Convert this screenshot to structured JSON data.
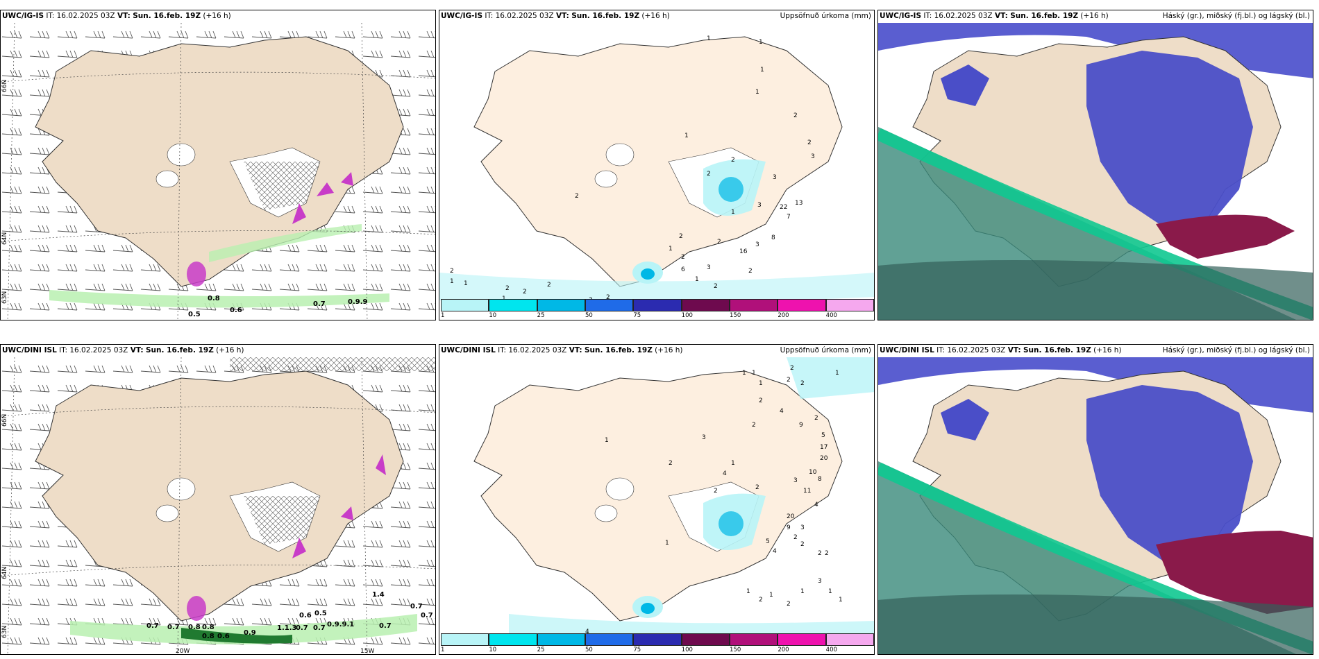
{
  "panels": [
    {
      "model": "UWC/IG-IS",
      "it": "IT: 16.02.2025 03Z",
      "vt_label": "VT:",
      "vt": "Sun. 16.feb. 19Z",
      "lead": "(+16 h)",
      "title": ""
    },
    {
      "model": "UWC/IG-IS",
      "it": "IT: 16.02.2025 03Z",
      "vt_label": "VT:",
      "vt": "Sun. 16.feb. 19Z",
      "lead": "(+16 h)",
      "title": "Uppsöfnuð úrkoma (mm)"
    },
    {
      "model": "UWC/IG-IS",
      "it": "IT: 16.02.2025 03Z",
      "vt_label": "VT:",
      "vt": "Sun. 16.feb. 19Z",
      "lead": "(+16 h)",
      "title": "Háský (gr.), miðský (fj.bl.) og lágský (bl.)"
    },
    {
      "model": "UWC/DINI ISL",
      "it": "IT: 16.02.2025 03Z",
      "vt_label": "VT:",
      "vt": "Sun. 16.feb. 19Z",
      "lead": "(+16 h)",
      "title": ""
    },
    {
      "model": "UWC/DINI ISL",
      "it": "IT: 16.02.2025 03Z",
      "vt_label": "VT:",
      "vt": "Sun. 16.feb. 19Z",
      "lead": "(+16 h)",
      "title": "Uppsöfnuð úrkoma (mm)"
    },
    {
      "model": "UWC/DINI ISL",
      "it": "IT: 16.02.2025 03Z",
      "vt_label": "VT:",
      "vt": "Sun. 16.feb. 19Z",
      "lead": "(+16 h)",
      "title": "Háský (gr.), miðský (fj.bl.) og lágský (bl.)"
    }
  ],
  "grid_labels": {
    "lat66": "66N",
    "lat64": "64N",
    "lat63": "63N",
    "lon20": "20W",
    "lon15": "15W"
  },
  "colorbar": {
    "ticks": [
      "1",
      "10",
      "25",
      "50",
      "75",
      "100",
      "150",
      "200",
      "400"
    ],
    "colors": [
      "#b8f4f7",
      "#00e5ee",
      "#00b8e6",
      "#1f6be8",
      "#2b2bb0",
      "#6e0a4e",
      "#b0107a",
      "#ee12ae",
      "#f5a8ee"
    ]
  },
  "wind_values_top": [
    "0.8",
    "0.5",
    "0.6",
    "0.7",
    "0.9.9"
  ],
  "wind_values_bottom": [
    "0.7",
    "0.7",
    "0.8",
    "0.8",
    "0.8",
    "0.6",
    "1.4",
    "0.6",
    "0.5",
    "0.7",
    "0.7",
    "0.7",
    "0.7",
    "1.1.3",
    "0.9.9.1",
    "0.7",
    "0.9"
  ],
  "precip_values_top": [
    "1",
    "1",
    "1",
    "1",
    "2",
    "2",
    "1",
    "3",
    "3",
    "2",
    "2",
    "2",
    "1",
    "3",
    "13",
    "22",
    "7",
    "8",
    "3",
    "16",
    "2",
    "2",
    "1",
    "2",
    "6",
    "3",
    "2",
    "1",
    "2",
    "1",
    "2",
    "2",
    "1",
    "1",
    "2",
    "2",
    "3",
    "2"
  ],
  "precip_values_bottom": [
    "1",
    "1",
    "1",
    "2",
    "2",
    "2",
    "1",
    "2",
    "4",
    "2",
    "2",
    "2",
    "9",
    "5",
    "17",
    "20",
    "10",
    "8",
    "11",
    "3",
    "4",
    "1",
    "2",
    "3",
    "4",
    "1",
    "2",
    "20",
    "9",
    "3",
    "2",
    "5",
    "4",
    "2",
    "1",
    "4",
    "2",
    "2",
    "3",
    "1",
    "1",
    "1",
    "1",
    "2",
    "2",
    "1"
  ]
}
